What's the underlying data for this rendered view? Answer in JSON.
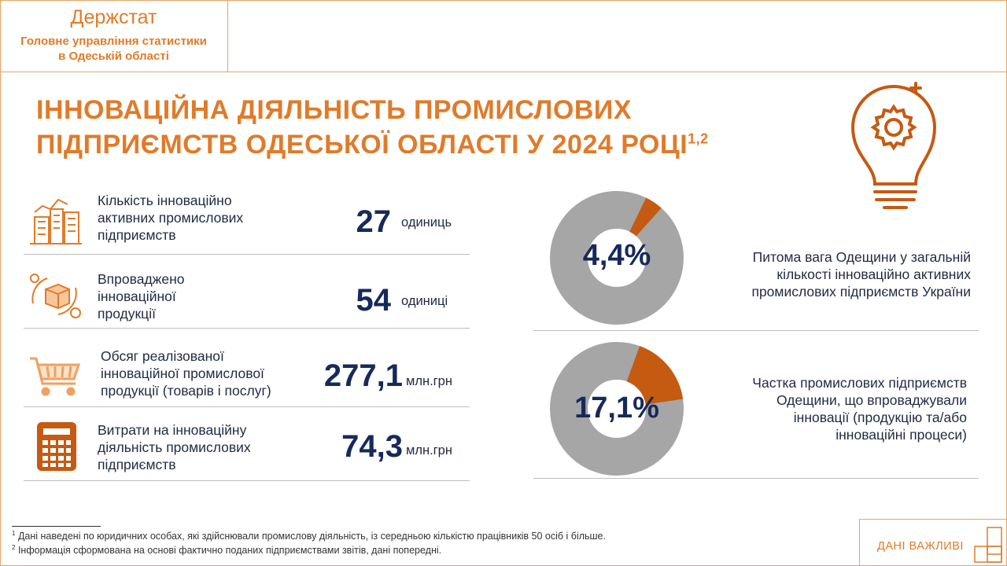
{
  "header": {
    "brand": "Держстат",
    "org_line1": "Головне управління статистики",
    "org_line2": "в Одеській області"
  },
  "title": {
    "line1": "ІННОВАЦІЙНА ДІЯЛЬНІСТЬ ПРОМИСЛОВИХ",
    "line2": "ПІДПРИЄМСТВ ОДЕСЬКОЇ ОБЛАСТІ У 2024 РОЦІ",
    "footnote_marks": "1,2"
  },
  "stats": [
    {
      "icon": "industrial-buildings-icon",
      "label_lines": [
        "Кількість інноваційно",
        "активних промислових",
        "підприємств"
      ],
      "value": "27",
      "unit": "одиниць"
    },
    {
      "icon": "innovation-product-cycle-icon",
      "label_lines": [
        "Впроваджено",
        "інноваційної",
        "продукції"
      ],
      "value": "54",
      "unit": "одиниці"
    },
    {
      "icon": "shopping-cart-icon",
      "label_lines": [
        "Обсяг реалізованої",
        "інноваційної промислової",
        "продукції (товарів і послуг)"
      ],
      "value": "277,1",
      "unit": "млн.грн"
    },
    {
      "icon": "calculator-icon",
      "label_lines": [
        "Витрати на інноваційну",
        "діяльність промислових",
        "підприємств"
      ],
      "value": "74,3",
      "unit": "млн.грн"
    }
  ],
  "donuts": [
    {
      "value_text": "4,4%",
      "fraction": 0.044,
      "desc_lines": [
        "Питома вага Одещини у загальній",
        "кількості інноваційно активних",
        "промислових підприємств України"
      ]
    },
    {
      "value_text": "17,1%",
      "fraction": 0.171,
      "desc_lines": [
        "Частка промислових підприємств",
        "Одещини, що впроваджували",
        "інновації (продукцію та/або",
        "інноваційні процеси)"
      ]
    }
  ],
  "colors": {
    "accent": "#E07B2A",
    "donut_fill": "#C55A11",
    "donut_rest": "#A6A6A6",
    "value_text": "#162A5A"
  },
  "footnotes": [
    {
      "mark": "1",
      "text": "Дані наведені по юридичних особах, які здійснювали промислову діяльність, із середньою кількістю працівників 50 осіб і більше."
    },
    {
      "mark": "2",
      "text": "Інформація сформована на основі фактично поданих підприємствами звітів, дані попередні."
    }
  ],
  "corner": {
    "label": "ДАНІ ВАЖЛИВІ"
  }
}
